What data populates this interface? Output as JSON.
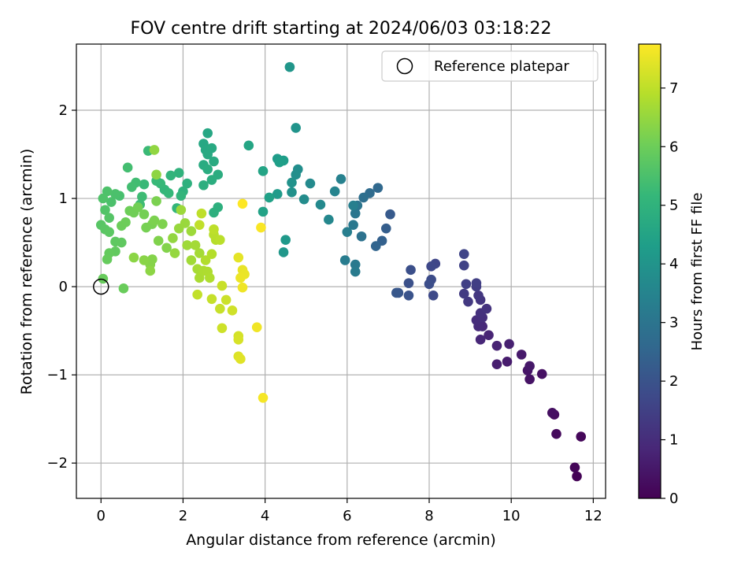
{
  "chart_data": {
    "type": "scatter",
    "title": "FOV centre drift starting at 2024/06/03 03:18:22",
    "xlabel": "Angular distance from reference (arcmin)",
    "ylabel": "Rotation from reference (arcmin)",
    "xlim": [
      -0.6,
      12.3
    ],
    "ylim": [
      -2.4,
      2.75
    ],
    "xticks": [
      0,
      2,
      4,
      6,
      8,
      10,
      12
    ],
    "xtick_labels": [
      "0",
      "2",
      "4",
      "6",
      "8",
      "10",
      "12"
    ],
    "yticks": [
      -2,
      -1,
      0,
      1,
      2
    ],
    "ytick_labels": [
      "−2",
      "−1",
      "0",
      "1",
      "2"
    ],
    "grid": true,
    "legend": {
      "position": "top-right",
      "entries": [
        "Reference platepar"
      ]
    },
    "reference_point": {
      "x": 0,
      "y": 0
    },
    "colorbar": {
      "label": "Hours from first FF file",
      "range": [
        0,
        7.75
      ],
      "ticks": [
        0,
        1,
        2,
        3,
        4,
        5,
        6,
        7
      ],
      "tick_labels": [
        "0",
        "1",
        "2",
        "3",
        "4",
        "5",
        "6",
        "7"
      ],
      "colormap": [
        "#440154",
        "#482878",
        "#3e4989",
        "#31688e",
        "#26828e",
        "#1f9e89",
        "#35b779",
        "#6ece58",
        "#b5de2b",
        "#fde725"
      ]
    },
    "series": [
      {
        "points": [
          [
            11.6,
            -2.15,
            0.05
          ],
          [
            11.55,
            -2.05,
            0.1
          ],
          [
            11.7,
            -1.7,
            0.15
          ],
          [
            11.1,
            -1.67,
            0.2
          ],
          [
            11.05,
            -1.45,
            0.25
          ],
          [
            11.0,
            -1.43,
            0.3
          ],
          [
            10.75,
            -0.99,
            0.35
          ],
          [
            10.45,
            -1.05,
            0.4
          ],
          [
            10.4,
            -0.95,
            0.45
          ],
          [
            10.45,
            -0.9,
            0.5
          ],
          [
            10.25,
            -0.77,
            0.55
          ],
          [
            9.9,
            -0.85,
            0.6
          ],
          [
            9.65,
            -0.88,
            0.65
          ],
          [
            9.95,
            -0.65,
            0.7
          ],
          [
            9.65,
            -0.67,
            0.75
          ],
          [
            9.45,
            -0.55,
            0.8
          ],
          [
            9.25,
            -0.6,
            0.85
          ],
          [
            9.3,
            -0.45,
            0.9
          ],
          [
            9.2,
            -0.45,
            0.95
          ],
          [
            9.15,
            -0.38,
            1.0
          ],
          [
            9.3,
            -0.35,
            1.05
          ],
          [
            9.25,
            -0.3,
            1.1
          ],
          [
            9.4,
            -0.25,
            1.15
          ],
          [
            9.25,
            -0.15,
            1.2
          ],
          [
            9.2,
            -0.1,
            1.25
          ],
          [
            8.95,
            -0.17,
            1.3
          ],
          [
            8.85,
            -0.08,
            1.35
          ],
          [
            9.15,
            0.0,
            1.4
          ],
          [
            9.15,
            0.04,
            1.45
          ],
          [
            8.9,
            0.03,
            1.5
          ],
          [
            8.85,
            0.24,
            1.55
          ],
          [
            8.85,
            0.37,
            1.6
          ],
          [
            8.15,
            0.26,
            1.65
          ],
          [
            8.05,
            0.23,
            1.7
          ],
          [
            8.1,
            -0.1,
            1.75
          ],
          [
            8.05,
            0.08,
            1.8
          ],
          [
            8.0,
            0.03,
            1.85
          ],
          [
            7.55,
            0.19,
            1.9
          ],
          [
            7.5,
            0.04,
            1.95
          ],
          [
            7.5,
            -0.1,
            2.0
          ],
          [
            7.25,
            -0.07,
            2.05
          ],
          [
            7.2,
            -0.07,
            2.1
          ],
          [
            7.05,
            0.82,
            2.2
          ],
          [
            6.95,
            0.66,
            2.3
          ],
          [
            6.85,
            0.52,
            2.4
          ],
          [
            6.7,
            0.46,
            2.5
          ],
          [
            6.75,
            1.12,
            2.6
          ],
          [
            6.55,
            1.06,
            2.7
          ],
          [
            6.4,
            1.01,
            2.8
          ],
          [
            6.35,
            0.57,
            2.9
          ],
          [
            6.25,
            0.92,
            3.0
          ],
          [
            6.2,
            0.83,
            3.05
          ],
          [
            6.15,
            0.7,
            3.1
          ],
          [
            6.2,
            0.25,
            3.15
          ],
          [
            6.2,
            0.17,
            3.2
          ],
          [
            5.95,
            0.3,
            3.25
          ],
          [
            6.0,
            0.62,
            3.3
          ],
          [
            6.15,
            0.92,
            3.35
          ],
          [
            5.85,
            1.22,
            3.4
          ],
          [
            5.7,
            1.08,
            3.5
          ],
          [
            5.55,
            0.76,
            3.6
          ],
          [
            5.35,
            0.93,
            3.65
          ],
          [
            5.1,
            1.17,
            3.7
          ],
          [
            4.95,
            0.99,
            3.75
          ],
          [
            4.8,
            1.33,
            3.8
          ],
          [
            4.75,
            1.27,
            3.85
          ],
          [
            4.65,
            1.07,
            3.9
          ],
          [
            4.65,
            1.18,
            3.95
          ],
          [
            4.75,
            1.8,
            4.0
          ],
          [
            4.6,
            2.49,
            4.05
          ],
          [
            4.45,
            0.39,
            4.1
          ],
          [
            4.5,
            0.53,
            4.15
          ],
          [
            4.3,
            1.05,
            4.2
          ],
          [
            4.3,
            1.45,
            4.25
          ],
          [
            4.45,
            1.43,
            4.3
          ],
          [
            4.35,
            1.41,
            4.35
          ],
          [
            4.1,
            1.01,
            4.4
          ],
          [
            3.95,
            0.85,
            4.45
          ],
          [
            3.95,
            1.31,
            4.5
          ],
          [
            3.6,
            1.6,
            4.55
          ],
          [
            2.6,
            1.74,
            4.6
          ],
          [
            2.5,
            1.62,
            4.62
          ],
          [
            2.55,
            1.55,
            4.65
          ],
          [
            2.7,
            1.57,
            4.68
          ],
          [
            2.6,
            1.5,
            4.7
          ],
          [
            2.75,
            1.42,
            4.72
          ],
          [
            2.5,
            1.38,
            4.75
          ],
          [
            2.6,
            1.33,
            4.78
          ],
          [
            2.85,
            1.27,
            4.8
          ],
          [
            2.7,
            1.21,
            4.82
          ],
          [
            2.5,
            1.15,
            4.85
          ],
          [
            2.85,
            0.9,
            4.88
          ],
          [
            2.75,
            0.84,
            4.9
          ],
          [
            2.1,
            1.17,
            4.92
          ],
          [
            2.0,
            1.08,
            4.95
          ],
          [
            1.9,
            1.29,
            5.0
          ],
          [
            1.7,
            1.26,
            5.05
          ],
          [
            1.95,
            1.03,
            5.08
          ],
          [
            1.85,
            0.89,
            5.1
          ],
          [
            1.55,
            1.1,
            5.12
          ],
          [
            1.65,
            1.06,
            5.15
          ],
          [
            1.45,
            1.17,
            5.18
          ],
          [
            1.35,
            1.2,
            5.2
          ],
          [
            1.05,
            1.16,
            5.22
          ],
          [
            1.15,
            1.54,
            5.25
          ],
          [
            1.0,
            1.02,
            5.3
          ],
          [
            0.95,
            0.93,
            5.32
          ],
          [
            0.85,
            1.18,
            5.35
          ],
          [
            0.75,
            1.13,
            5.38
          ],
          [
            0.65,
            1.35,
            5.4
          ],
          [
            0.45,
            1.03,
            5.45
          ],
          [
            0.35,
            1.05,
            5.5
          ],
          [
            0.25,
            0.96,
            5.52
          ],
          [
            0.15,
            1.08,
            5.55
          ],
          [
            0.05,
            1.0,
            5.58
          ],
          [
            0.1,
            0.87,
            5.6
          ],
          [
            0.2,
            0.78,
            5.65
          ],
          [
            0.0,
            0.7,
            5.7
          ],
          [
            0.1,
            0.65,
            5.72
          ],
          [
            0.2,
            0.62,
            5.75
          ],
          [
            0.35,
            0.51,
            5.8
          ],
          [
            0.5,
            0.5,
            5.82
          ],
          [
            0.35,
            0.4,
            5.85
          ],
          [
            0.2,
            0.38,
            5.88
          ],
          [
            0.15,
            0.31,
            5.9
          ],
          [
            0.05,
            0.09,
            5.92
          ],
          [
            0.55,
            -0.02,
            5.95
          ],
          [
            0.5,
            0.69,
            5.98
          ],
          [
            0.6,
            0.73,
            6.0
          ],
          [
            0.7,
            0.86,
            6.02
          ],
          [
            0.8,
            0.84,
            6.05
          ],
          [
            0.9,
            0.9,
            6.08
          ],
          [
            1.05,
            0.82,
            6.1
          ],
          [
            1.1,
            0.67,
            6.12
          ],
          [
            1.25,
            0.71,
            6.15
          ],
          [
            1.35,
            0.97,
            6.18
          ],
          [
            1.3,
            0.75,
            6.2
          ],
          [
            1.5,
            0.71,
            6.22
          ],
          [
            1.4,
            0.52,
            6.25
          ],
          [
            1.6,
            0.44,
            6.28
          ],
          [
            1.25,
            0.31,
            6.3
          ],
          [
            1.2,
            0.25,
            6.32
          ],
          [
            1.05,
            0.3,
            6.35
          ],
          [
            0.8,
            0.33,
            6.38
          ],
          [
            1.2,
            0.18,
            6.4
          ],
          [
            1.35,
            1.27,
            6.42
          ],
          [
            1.3,
            1.55,
            6.45
          ],
          [
            1.75,
            0.55,
            6.48
          ],
          [
            1.8,
            0.38,
            6.5
          ],
          [
            1.9,
            0.66,
            6.52
          ],
          [
            2.05,
            0.72,
            6.55
          ],
          [
            1.95,
            0.87,
            6.58
          ],
          [
            2.2,
            0.63,
            6.6
          ],
          [
            2.1,
            0.47,
            6.62
          ],
          [
            2.2,
            0.3,
            6.65
          ],
          [
            2.3,
            0.47,
            6.68
          ],
          [
            2.4,
            0.38,
            6.7
          ],
          [
            2.35,
            0.2,
            6.72
          ],
          [
            2.4,
            0.1,
            6.75
          ],
          [
            2.5,
            0.18,
            6.78
          ],
          [
            2.6,
            0.17,
            6.8
          ],
          [
            2.65,
            0.1,
            6.82
          ],
          [
            2.55,
            0.3,
            6.85
          ],
          [
            2.7,
            0.37,
            6.88
          ],
          [
            2.8,
            0.53,
            6.9
          ],
          [
            2.75,
            0.59,
            6.92
          ],
          [
            2.9,
            0.53,
            6.95
          ],
          [
            2.75,
            0.65,
            6.98
          ],
          [
            2.45,
            0.83,
            7.0
          ],
          [
            2.4,
            0.7,
            7.02
          ],
          [
            2.35,
            -0.09,
            7.05
          ],
          [
            2.7,
            -0.14,
            7.08
          ],
          [
            2.9,
            -0.25,
            7.1
          ],
          [
            2.95,
            0.01,
            7.12
          ],
          [
            3.05,
            -0.15,
            7.15
          ],
          [
            2.95,
            -0.47,
            7.18
          ],
          [
            3.2,
            -0.27,
            7.2
          ],
          [
            3.35,
            -0.56,
            7.25
          ],
          [
            3.35,
            -0.6,
            7.3
          ],
          [
            3.35,
            -0.79,
            7.35
          ],
          [
            3.4,
            -0.82,
            7.4
          ],
          [
            3.35,
            0.33,
            7.45
          ],
          [
            3.45,
            0.19,
            7.5
          ],
          [
            3.5,
            0.14,
            7.52
          ],
          [
            3.4,
            0.1,
            7.55
          ],
          [
            3.45,
            -0.01,
            7.58
          ],
          [
            3.8,
            -0.46,
            7.6
          ],
          [
            3.95,
            -1.26,
            7.65
          ],
          [
            3.9,
            0.67,
            7.7
          ],
          [
            3.45,
            0.94,
            7.75
          ]
        ]
      }
    ]
  }
}
